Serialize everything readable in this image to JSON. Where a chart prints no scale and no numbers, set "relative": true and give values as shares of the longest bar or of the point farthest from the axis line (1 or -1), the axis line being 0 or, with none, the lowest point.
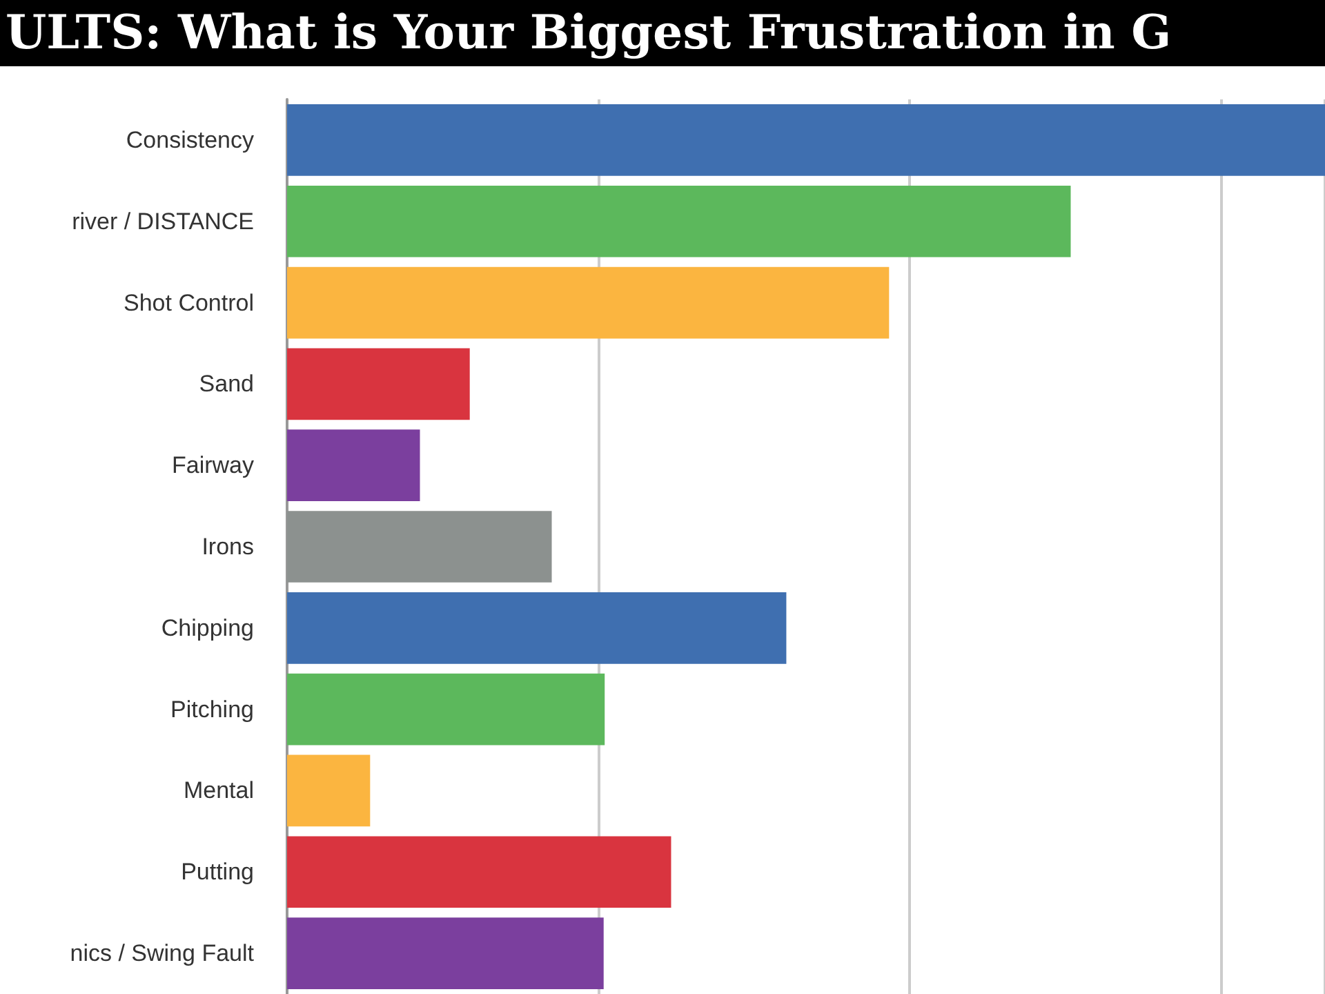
{
  "chart_data": {
    "type": "bar",
    "orientation": "horizontal",
    "relative": true,
    "title": "ULTS: What is Your Biggest Frustration in G",
    "categories": [
      "Consistency",
      "river / DISTANCE",
      "Shot Control",
      "Sand",
      "Fairway",
      "Irons",
      "Chipping",
      "Pitching",
      "Mental",
      "Putting",
      "nics / Swing Fault"
    ],
    "values": [
      1,
      0.755,
      0.58,
      0.176,
      0.128,
      0.255,
      0.481,
      0.306,
      0.08,
      0.37,
      0.305
    ],
    "colors": [
      "#3f6fb0",
      "#5cb85c",
      "#fbb540",
      "#d9343f",
      "#7b3f9e",
      "#8c918f",
      "#3f6fb0",
      "#5cb85c",
      "#fbb540",
      "#d9343f",
      "#7b3f9e"
    ],
    "grid": "x"
  }
}
